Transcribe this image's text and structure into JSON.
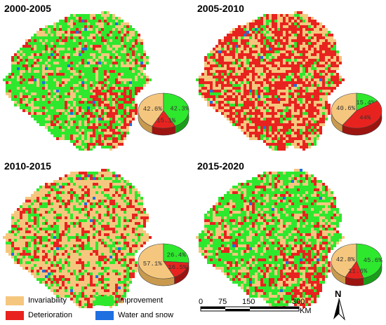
{
  "panels": [
    {
      "title": "2000-2005",
      "dominant": "green",
      "pie": [
        {
          "label": "42.6%",
          "value": 42.6,
          "class": "invariability"
        },
        {
          "label": "42.3%",
          "value": 42.3,
          "class": "improvement"
        },
        {
          "label": "15.1%",
          "value": 15.1,
          "class": "deterioration"
        }
      ]
    },
    {
      "title": "2005-2010",
      "dominant": "red",
      "pie": [
        {
          "label": "40.6%",
          "value": 40.6,
          "class": "invariability"
        },
        {
          "label": "15.4%",
          "value": 15.4,
          "class": "improvement"
        },
        {
          "label": "44%",
          "value": 44,
          "class": "deterioration"
        }
      ]
    },
    {
      "title": "2010-2015",
      "dominant": "tan",
      "pie": [
        {
          "label": "57.1%",
          "value": 57.1,
          "class": "invariability"
        },
        {
          "label": "26.4%",
          "value": 26.4,
          "class": "improvement"
        },
        {
          "label": "16.5%",
          "value": 16.5,
          "class": "deterioration"
        }
      ]
    },
    {
      "title": "2015-2020",
      "dominant": "green",
      "pie": [
        {
          "label": "42.8%",
          "value": 42.8,
          "class": "invariability"
        },
        {
          "label": "45.6%",
          "value": 45.6,
          "class": "improvement"
        },
        {
          "label": "11.6%",
          "value": 11.6,
          "class": "deterioration"
        }
      ]
    }
  ],
  "legend": {
    "invariability": "Invariability",
    "improvement": "Improvement",
    "deterioration": "Deterioration",
    "water": "Water and snow"
  },
  "colors": {
    "invariability": "#f5c77e",
    "improvement": "#2ee82e",
    "deterioration": "#e8231f",
    "water": "#1f6fe0"
  },
  "scalebar": {
    "ticks": [
      "0",
      "75",
      "150",
      "300"
    ],
    "unit": "KM"
  },
  "north_label": "N"
}
